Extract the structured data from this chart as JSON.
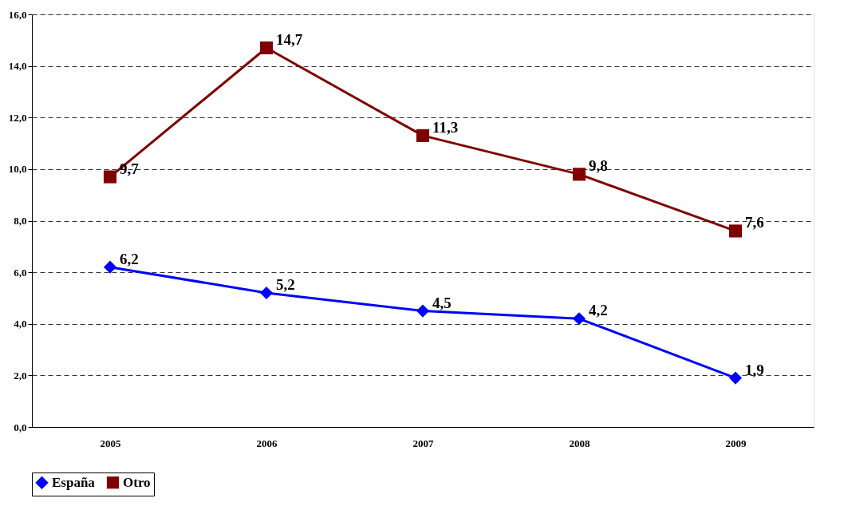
{
  "chart_data": {
    "type": "line",
    "categories": [
      "2005",
      "2006",
      "2007",
      "2008",
      "2009"
    ],
    "series": [
      {
        "name": "España",
        "color": "#0000ff",
        "marker": "diamond",
        "values": [
          6.2,
          5.2,
          4.5,
          4.2,
          1.9
        ],
        "value_labels": [
          "6,2",
          "5,2",
          "4,5",
          "4,2",
          "1,9"
        ]
      },
      {
        "name": "Otro",
        "color": "#800000",
        "marker": "square",
        "values": [
          9.7,
          14.7,
          11.3,
          9.8,
          7.6
        ],
        "value_labels": [
          "9,7",
          "14,7",
          "11,3",
          "9,8",
          "7,6"
        ]
      }
    ],
    "ylim": [
      0,
      16
    ],
    "yticks": [
      {
        "value": 0,
        "label": "0,0"
      },
      {
        "value": 2,
        "label": "2,0"
      },
      {
        "value": 4,
        "label": "4,0"
      },
      {
        "value": 6,
        "label": "6,0"
      },
      {
        "value": 8,
        "label": "8,0"
      },
      {
        "value": 10,
        "label": "10,0"
      },
      {
        "value": 12,
        "label": "12,0"
      },
      {
        "value": 14,
        "label": "14,0"
      },
      {
        "value": 16,
        "label": "16,0"
      }
    ],
    "grid": "y",
    "legend": "bottom",
    "line_style": "solid"
  }
}
